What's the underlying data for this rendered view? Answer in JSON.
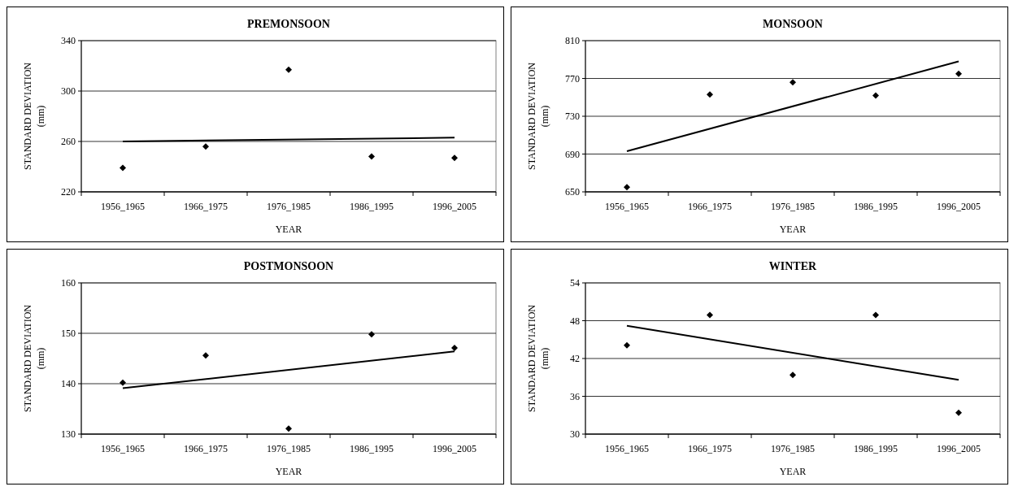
{
  "chart_data": [
    {
      "type": "scatter",
      "title": "PREMONSOON",
      "xlabel": "YEAR",
      "ylabel": "STANDARD DEVIATION\n(mm)",
      "categories": [
        "1956_1965",
        "1966_1975",
        "1976_1985",
        "1986_1995",
        "1996_2005"
      ],
      "ylim": [
        220,
        340
      ],
      "yticks": [
        220,
        260,
        300,
        340
      ],
      "grid": "y",
      "series": [
        {
          "color": "#000000",
          "marker": "diamond",
          "values": [
            239,
            256,
            317,
            248,
            247
          ]
        },
        {
          "type": "line",
          "color": "#000000",
          "marker": "none",
          "x": [
            "1956_1965",
            "1996_2005"
          ],
          "values": [
            260,
            263
          ]
        }
      ]
    },
    {
      "type": "scatter",
      "title": "MONSOON",
      "xlabel": "YEAR",
      "ylabel": "STANDARD DEVIATION\n(mm)",
      "categories": [
        "1956_1965",
        "1966_1975",
        "1976_1985",
        "1986_1995",
        "1996_2005"
      ],
      "ylim": [
        650,
        810
      ],
      "yticks": [
        650,
        690,
        730,
        770,
        810
      ],
      "grid": "y",
      "series": [
        {
          "color": "#000000",
          "marker": "diamond",
          "values": [
            655,
            753,
            766,
            752,
            775
          ]
        },
        {
          "type": "line",
          "color": "#000000",
          "marker": "none",
          "x": [
            "1956_1965",
            "1996_2005"
          ],
          "values": [
            693,
            788
          ]
        }
      ]
    },
    {
      "type": "scatter",
      "title": "POSTMONSOON",
      "xlabel": "YEAR",
      "ylabel": "STANDARD DEVIATION\n(mm)",
      "categories": [
        "1956_1965",
        "1966_1975",
        "1976_1985",
        "1986_1995",
        "1996_2005"
      ],
      "ylim": [
        130,
        160
      ],
      "yticks": [
        130,
        140,
        150,
        160
      ],
      "grid": "y",
      "series": [
        {
          "color": "#000000",
          "marker": "diamond",
          "values": [
            140.2,
            145.6,
            131.1,
            149.8,
            147.1
          ]
        },
        {
          "type": "line",
          "color": "#000000",
          "marker": "none",
          "x": [
            "1956_1965",
            "1996_2005"
          ],
          "values": [
            139.1,
            146.4
          ]
        }
      ]
    },
    {
      "type": "scatter",
      "title": "WINTER",
      "xlabel": "YEAR",
      "ylabel": "STANDARD DEVIATION\n(mm)",
      "categories": [
        "1956_1965",
        "1966_1975",
        "1976_1985",
        "1986_1995",
        "1996_2005"
      ],
      "ylim": [
        30,
        54
      ],
      "yticks": [
        30,
        36,
        42,
        48,
        54
      ],
      "grid": "y",
      "series": [
        {
          "color": "#000000",
          "marker": "diamond",
          "values": [
            44.1,
            48.9,
            39.4,
            48.9,
            33.4
          ]
        },
        {
          "type": "line",
          "color": "#000000",
          "marker": "none",
          "x": [
            "1956_1965",
            "1996_2005"
          ],
          "values": [
            47.2,
            38.6
          ]
        }
      ]
    }
  ]
}
